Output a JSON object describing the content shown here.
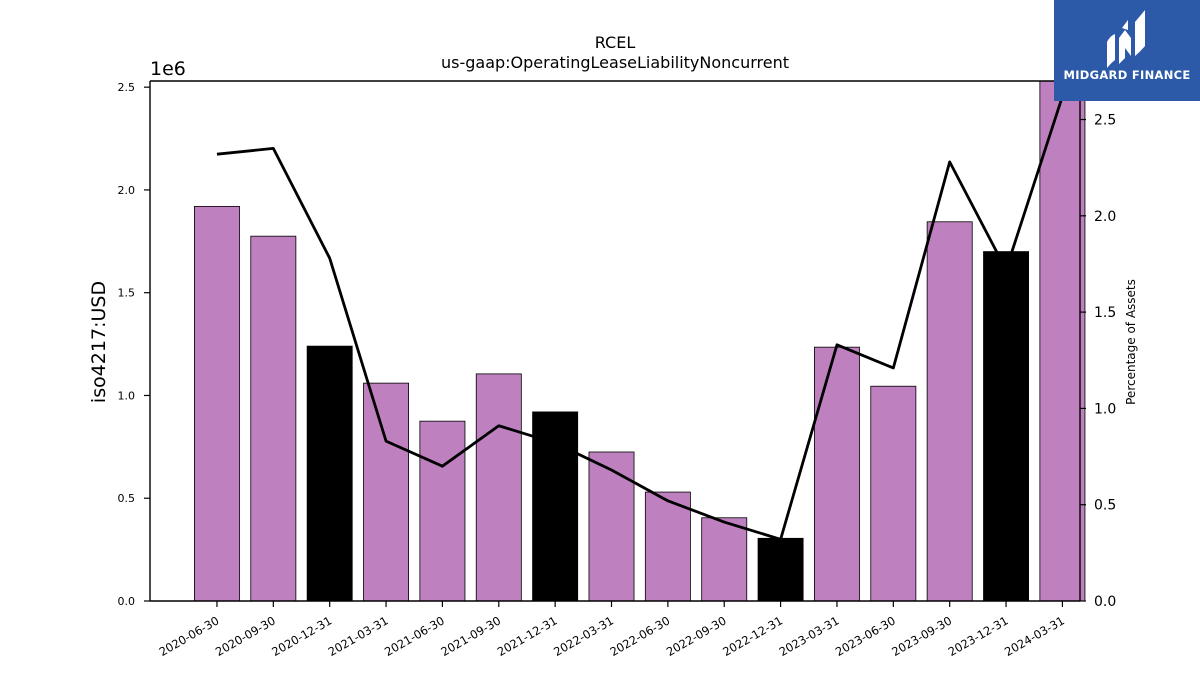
{
  "chart_data": {
    "type": "bar",
    "title": "RCEL",
    "subtitle": "us-gaap:OperatingLeaseLiabilityNoncurrent",
    "ylabel": "iso4217:USD",
    "y_offset_label": "1e6",
    "y2label": "Percentage of Assets",
    "categories": [
      "2020-06-30",
      "2020-09-30",
      "2020-12-31",
      "2021-03-31",
      "2021-06-30",
      "2021-09-30",
      "2021-12-31",
      "2022-03-31",
      "2022-06-30",
      "2022-09-30",
      "2022-12-31",
      "2023-03-31",
      "2023-06-30",
      "2023-09-30",
      "2023-12-31",
      "2024-03-31"
    ],
    "values": [
      1920000,
      1775000,
      1240000,
      1060000,
      875000,
      1105000,
      920000,
      725000,
      530000,
      405000,
      305000,
      1235000,
      1045000,
      1845000,
      1700000,
      2540000
    ],
    "bar_colors": [
      "#bf80bf",
      "#bf80bf",
      "#000000",
      "#bf80bf",
      "#bf80bf",
      "#bf80bf",
      "#000000",
      "#bf80bf",
      "#bf80bf",
      "#bf80bf",
      "#000000",
      "#bf80bf",
      "#bf80bf",
      "#bf80bf",
      "#000000",
      "#bf80bf"
    ],
    "line_values": [
      2.32,
      2.35,
      1.78,
      0.83,
      0.7,
      0.91,
      0.82,
      0.68,
      0.52,
      0.41,
      0.32,
      1.33,
      1.21,
      2.28,
      1.72,
      2.62
    ],
    "ylim": [
      0,
      2530000
    ],
    "y2lim": [
      0,
      2.7
    ],
    "yticks": [
      0,
      500000,
      1000000,
      1500000,
      2000000,
      2500000
    ],
    "ytick_labels": [
      "0.0",
      "0.5",
      "1.0",
      "1.5",
      "2.0",
      "2.5"
    ],
    "y2ticks": [
      0,
      0.5,
      1.0,
      1.5,
      2.0,
      2.5
    ],
    "y2tick_labels": [
      "0.0",
      "0.5",
      "1.0",
      "1.5",
      "2.0",
      "2.5"
    ],
    "grid": false,
    "legend": "none"
  },
  "logo": {
    "text": "MIDGARD FINANCE",
    "icon": "midgard-logo-icon",
    "color": "#2c5aa8"
  }
}
